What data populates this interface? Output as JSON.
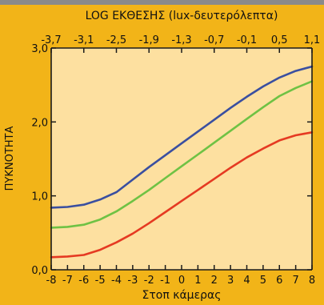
{
  "chart_data": {
    "type": "line",
    "title": "",
    "x_top_label": "LOG ΕΚΘΕΣΗΣ (lux-δευτερόλεπτα)",
    "x_top_ticks": [
      "-3,7",
      "-3,1",
      "-2,5",
      "-1,9",
      "-1,3",
      "-0,7",
      "-0,1",
      "0,5",
      "1,1"
    ],
    "xlabel": "Στοπ κάμερας",
    "x_ticks": [
      "-8",
      "-7",
      "-6",
      "-5",
      "-4",
      "-3",
      "-2",
      "-1",
      "0",
      "1",
      "2",
      "3",
      "4",
      "5",
      "6",
      "7",
      "8"
    ],
    "ylabel": "ΠΥΚΝΟΤΗΤΑ",
    "y_ticks": [
      "0,0",
      "1,0",
      "2,0",
      "3,0"
    ],
    "xlim": [
      -8,
      8
    ],
    "ylim": [
      0,
      3
    ],
    "grid": false,
    "series": [
      {
        "color": "#3a4fa0",
        "x": [
          -8,
          -7,
          -6,
          -5,
          -4,
          -3,
          -2,
          -1,
          0,
          1,
          2,
          3,
          4,
          5,
          6,
          7,
          8
        ],
        "y": [
          0.84,
          0.85,
          0.88,
          0.95,
          1.05,
          1.22,
          1.39,
          1.55,
          1.71,
          1.87,
          2.03,
          2.19,
          2.34,
          2.48,
          2.6,
          2.69,
          2.75
        ]
      },
      {
        "color": "#6fc244",
        "x": [
          -8,
          -7,
          -6,
          -5,
          -4,
          -3,
          -2,
          -1,
          0,
          1,
          2,
          3,
          4,
          5,
          6,
          7,
          8
        ],
        "y": [
          0.57,
          0.58,
          0.61,
          0.68,
          0.79,
          0.93,
          1.08,
          1.24,
          1.4,
          1.56,
          1.72,
          1.88,
          2.04,
          2.2,
          2.35,
          2.46,
          2.55
        ]
      },
      {
        "color": "#e53a22",
        "x": [
          -8,
          -7,
          -6,
          -5,
          -4,
          -3,
          -2,
          -1,
          0,
          1,
          2,
          3,
          4,
          5,
          6,
          7,
          8
        ],
        "y": [
          0.17,
          0.18,
          0.2,
          0.27,
          0.37,
          0.49,
          0.63,
          0.78,
          0.93,
          1.08,
          1.23,
          1.38,
          1.52,
          1.64,
          1.75,
          1.82,
          1.86
        ]
      }
    ],
    "colors": {
      "frame": "#f2b418",
      "plot_background": "#fde0a0",
      "axis": "#1a1a1a"
    }
  }
}
